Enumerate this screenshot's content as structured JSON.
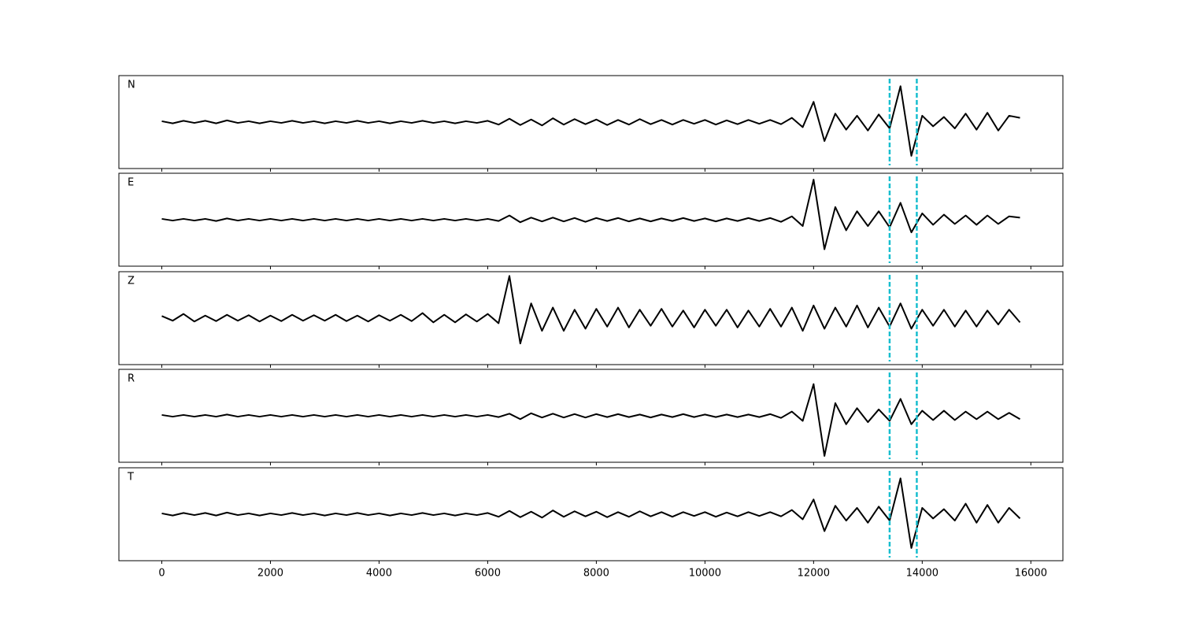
{
  "chart_data": [
    {
      "type": "line",
      "label": "N",
      "color": "#000000",
      "vlines": [
        13400,
        13900
      ],
      "vline_color": "#17becf",
      "xlim": [
        -790,
        16590
      ],
      "ylim": [
        -1.1,
        1.1
      ],
      "xticks": [
        0,
        2000,
        4000,
        6000,
        8000,
        10000,
        12000,
        14000,
        16000
      ],
      "x": [
        0,
        200,
        400,
        600,
        800,
        1000,
        1200,
        1400,
        1600,
        1800,
        2000,
        2200,
        2400,
        2600,
        2800,
        3000,
        3200,
        3400,
        3600,
        3800,
        4000,
        4200,
        4400,
        4600,
        4800,
        5000,
        5200,
        5400,
        5600,
        5800,
        6000,
        6200,
        6400,
        6600,
        6800,
        7000,
        7200,
        7400,
        7600,
        7800,
        8000,
        8200,
        8400,
        8600,
        8800,
        9000,
        9200,
        9400,
        9600,
        9800,
        10000,
        10200,
        10400,
        10600,
        10800,
        11000,
        11200,
        11400,
        11600,
        11800,
        12000,
        12200,
        12400,
        12600,
        12800,
        13000,
        13200,
        13400,
        13600,
        13800,
        14000,
        14200,
        14400,
        14600,
        14800,
        15000,
        15200,
        15400,
        15600,
        15800
      ],
      "values": [
        0.02,
        -0.03,
        0.03,
        -0.02,
        0.03,
        -0.03,
        0.04,
        -0.02,
        0.02,
        -0.03,
        0.02,
        -0.02,
        0.03,
        -0.02,
        0.02,
        -0.03,
        0.02,
        -0.02,
        0.03,
        -0.02,
        0.02,
        -0.03,
        0.02,
        -0.02,
        0.03,
        -0.02,
        0.02,
        -0.03,
        0.02,
        -0.02,
        0.03,
        -0.06,
        0.08,
        -0.07,
        0.06,
        -0.08,
        0.09,
        -0.06,
        0.07,
        -0.05,
        0.06,
        -0.07,
        0.05,
        -0.06,
        0.07,
        -0.05,
        0.05,
        -0.06,
        0.05,
        -0.04,
        0.05,
        -0.06,
        0.04,
        -0.05,
        0.05,
        -0.04,
        0.05,
        -0.05,
        0.1,
        -0.12,
        0.48,
        -0.45,
        0.2,
        -0.18,
        0.15,
        -0.2,
        0.18,
        -0.15,
        0.85,
        -0.8,
        0.15,
        -0.1,
        0.12,
        -0.15,
        0.2,
        -0.18,
        0.22,
        -0.2,
        0.15,
        0.1
      ]
    },
    {
      "type": "line",
      "label": "E",
      "color": "#000000",
      "vlines": [
        13400,
        13900
      ],
      "vline_color": "#17becf",
      "xlim": [
        -790,
        16590
      ],
      "ylim": [
        -1.1,
        1.1
      ],
      "xticks": [
        0,
        2000,
        4000,
        6000,
        8000,
        10000,
        12000,
        14000,
        16000
      ],
      "x": [
        0,
        200,
        400,
        600,
        800,
        1000,
        1200,
        1400,
        1600,
        1800,
        2000,
        2200,
        2400,
        2600,
        2800,
        3000,
        3200,
        3400,
        3600,
        3800,
        4000,
        4200,
        4400,
        4600,
        4800,
        5000,
        5200,
        5400,
        5600,
        5800,
        6000,
        6200,
        6400,
        6600,
        6800,
        7000,
        7200,
        7400,
        7600,
        7800,
        8000,
        8200,
        8400,
        8600,
        8800,
        9000,
        9200,
        9400,
        9600,
        9800,
        10000,
        10200,
        10400,
        10600,
        10800,
        11000,
        11200,
        11400,
        11600,
        11800,
        12000,
        12200,
        12400,
        12600,
        12800,
        13000,
        13200,
        13400,
        13600,
        13800,
        14000,
        14200,
        14400,
        14600,
        14800,
        15000,
        15200,
        15400,
        15600,
        15800
      ],
      "values": [
        0.02,
        -0.02,
        0.02,
        -0.02,
        0.02,
        -0.03,
        0.03,
        -0.02,
        0.02,
        -0.02,
        0.02,
        -0.02,
        0.02,
        -0.02,
        0.02,
        -0.02,
        0.02,
        -0.02,
        0.02,
        -0.02,
        0.02,
        -0.02,
        0.02,
        -0.02,
        0.02,
        -0.02,
        0.02,
        -0.02,
        0.02,
        -0.02,
        0.02,
        -0.03,
        0.1,
        -0.06,
        0.05,
        -0.04,
        0.05,
        -0.04,
        0.04,
        -0.05,
        0.04,
        -0.03,
        0.04,
        -0.04,
        0.03,
        -0.04,
        0.03,
        -0.03,
        0.04,
        -0.03,
        0.03,
        -0.04,
        0.03,
        -0.03,
        0.04,
        -0.03,
        0.04,
        -0.05,
        0.08,
        -0.15,
        0.95,
        -0.7,
        0.3,
        -0.25,
        0.2,
        -0.15,
        0.2,
        -0.18,
        0.4,
        -0.3,
        0.15,
        -0.12,
        0.12,
        -0.1,
        0.1,
        -0.12,
        0.1,
        -0.1,
        0.08,
        0.05
      ]
    },
    {
      "type": "line",
      "label": "Z",
      "color": "#000000",
      "vlines": [
        13400,
        13900
      ],
      "vline_color": "#17becf",
      "xlim": [
        -790,
        16590
      ],
      "ylim": [
        -1.1,
        1.1
      ],
      "xticks": [
        0,
        2000,
        4000,
        6000,
        8000,
        10000,
        12000,
        14000,
        16000
      ],
      "x": [
        0,
        200,
        400,
        600,
        800,
        1000,
        1200,
        1400,
        1600,
        1800,
        2000,
        2200,
        2400,
        2600,
        2800,
        3000,
        3200,
        3400,
        3600,
        3800,
        4000,
        4200,
        4400,
        4600,
        4800,
        5000,
        5200,
        5400,
        5600,
        5800,
        6000,
        6200,
        6400,
        6600,
        6800,
        7000,
        7200,
        7400,
        7600,
        7800,
        8000,
        8200,
        8400,
        8600,
        8800,
        9000,
        9200,
        9400,
        9600,
        9800,
        10000,
        10200,
        10400,
        10600,
        10800,
        11000,
        11200,
        11400,
        11600,
        11800,
        12000,
        12200,
        12400,
        12600,
        12800,
        13000,
        13200,
        13400,
        13600,
        13800,
        14000,
        14200,
        14400,
        14600,
        14800,
        15000,
        15200,
        15400,
        15600,
        15800
      ],
      "values": [
        0.05,
        -0.06,
        0.1,
        -0.08,
        0.06,
        -0.07,
        0.08,
        -0.06,
        0.07,
        -0.08,
        0.06,
        -0.07,
        0.08,
        -0.06,
        0.07,
        -0.06,
        0.08,
        -0.07,
        0.06,
        -0.08,
        0.07,
        -0.06,
        0.08,
        -0.07,
        0.12,
        -0.1,
        0.08,
        -0.1,
        0.09,
        -0.08,
        0.1,
        -0.12,
        1.0,
        -0.6,
        0.35,
        -0.3,
        0.25,
        -0.3,
        0.2,
        -0.25,
        0.22,
        -0.2,
        0.25,
        -0.22,
        0.2,
        -0.18,
        0.22,
        -0.2,
        0.18,
        -0.22,
        0.2,
        -0.18,
        0.2,
        -0.22,
        0.18,
        -0.2,
        0.22,
        -0.2,
        0.25,
        -0.3,
        0.3,
        -0.25,
        0.25,
        -0.2,
        0.3,
        -0.22,
        0.25,
        -0.2,
        0.35,
        -0.25,
        0.2,
        -0.18,
        0.2,
        -0.2,
        0.18,
        -0.2,
        0.18,
        -0.15,
        0.2,
        -0.1
      ]
    },
    {
      "type": "line",
      "label": "R",
      "color": "#000000",
      "vlines": [
        13400,
        13900
      ],
      "vline_color": "#17becf",
      "xlim": [
        -790,
        16590
      ],
      "ylim": [
        -1.1,
        1.1
      ],
      "xticks": [
        0,
        2000,
        4000,
        6000,
        8000,
        10000,
        12000,
        14000,
        16000
      ],
      "x": [
        0,
        200,
        400,
        600,
        800,
        1000,
        1200,
        1400,
        1600,
        1800,
        2000,
        2200,
        2400,
        2600,
        2800,
        3000,
        3200,
        3400,
        3600,
        3800,
        4000,
        4200,
        4400,
        4600,
        4800,
        5000,
        5200,
        5400,
        5600,
        5800,
        6000,
        6200,
        6400,
        6600,
        6800,
        7000,
        7200,
        7400,
        7600,
        7800,
        8000,
        8200,
        8400,
        8600,
        8800,
        9000,
        9200,
        9400,
        9600,
        9800,
        10000,
        10200,
        10400,
        10600,
        10800,
        11000,
        11200,
        11400,
        11600,
        11800,
        12000,
        12200,
        12400,
        12600,
        12800,
        13000,
        13200,
        13400,
        13600,
        13800,
        14000,
        14200,
        14400,
        14600,
        14800,
        15000,
        15200,
        15400,
        15600,
        15800
      ],
      "values": [
        0.02,
        -0.02,
        0.02,
        -0.02,
        0.02,
        -0.02,
        0.03,
        -0.02,
        0.02,
        -0.02,
        0.02,
        -0.02,
        0.02,
        -0.02,
        0.02,
        -0.02,
        0.02,
        -0.02,
        0.02,
        -0.02,
        0.02,
        -0.02,
        0.02,
        -0.02,
        0.02,
        -0.02,
        0.02,
        -0.02,
        0.02,
        -0.02,
        0.02,
        -0.03,
        0.05,
        -0.08,
        0.06,
        -0.04,
        0.05,
        -0.04,
        0.04,
        -0.04,
        0.04,
        -0.03,
        0.04,
        -0.03,
        0.03,
        -0.04,
        0.03,
        -0.03,
        0.04,
        -0.03,
        0.03,
        -0.03,
        0.03,
        -0.03,
        0.03,
        -0.03,
        0.04,
        -0.05,
        0.1,
        -0.12,
        0.75,
        -0.95,
        0.3,
        -0.2,
        0.18,
        -0.15,
        0.15,
        -0.12,
        0.4,
        -0.2,
        0.12,
        -0.1,
        0.12,
        -0.1,
        0.1,
        -0.08,
        0.1,
        -0.08,
        0.07,
        -0.08
      ]
    },
    {
      "type": "line",
      "label": "T",
      "color": "#000000",
      "vlines": [
        13400,
        13900
      ],
      "vline_color": "#17becf",
      "xlim": [
        -790,
        16590
      ],
      "ylim": [
        -1.1,
        1.1
      ],
      "xticks": [
        0,
        2000,
        4000,
        6000,
        8000,
        10000,
        12000,
        14000,
        16000
      ],
      "x": [
        0,
        200,
        400,
        600,
        800,
        1000,
        1200,
        1400,
        1600,
        1800,
        2000,
        2200,
        2400,
        2600,
        2800,
        3000,
        3200,
        3400,
        3600,
        3800,
        4000,
        4200,
        4400,
        4600,
        4800,
        5000,
        5200,
        5400,
        5600,
        5800,
        6000,
        6200,
        6400,
        6600,
        6800,
        7000,
        7200,
        7400,
        7600,
        7800,
        8000,
        8200,
        8400,
        8600,
        8800,
        9000,
        9200,
        9400,
        9600,
        9800,
        10000,
        10200,
        10400,
        10600,
        10800,
        11000,
        11200,
        11400,
        11600,
        11800,
        12000,
        12200,
        12400,
        12600,
        12800,
        13000,
        13200,
        13400,
        13600,
        13800,
        14000,
        14200,
        14400,
        14600,
        14800,
        15000,
        15200,
        15400,
        15600,
        15800
      ],
      "values": [
        0.02,
        -0.03,
        0.03,
        -0.02,
        0.03,
        -0.03,
        0.04,
        -0.02,
        0.02,
        -0.03,
        0.02,
        -0.02,
        0.03,
        -0.02,
        0.02,
        -0.03,
        0.02,
        -0.02,
        0.03,
        -0.02,
        0.02,
        -0.03,
        0.02,
        -0.02,
        0.03,
        -0.02,
        0.02,
        -0.03,
        0.02,
        -0.02,
        0.03,
        -0.06,
        0.08,
        -0.07,
        0.06,
        -0.08,
        0.09,
        -0.06,
        0.07,
        -0.05,
        0.06,
        -0.07,
        0.05,
        -0.06,
        0.07,
        -0.05,
        0.05,
        -0.06,
        0.05,
        -0.04,
        0.05,
        -0.06,
        0.04,
        -0.05,
        0.05,
        -0.04,
        0.05,
        -0.05,
        0.1,
        -0.12,
        0.35,
        -0.4,
        0.2,
        -0.15,
        0.15,
        -0.2,
        0.18,
        -0.15,
        0.85,
        -0.8,
        0.15,
        -0.1,
        0.12,
        -0.15,
        0.25,
        -0.2,
        0.22,
        -0.2,
        0.15,
        -0.1
      ]
    }
  ]
}
